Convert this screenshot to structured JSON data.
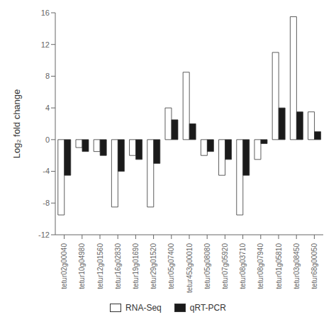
{
  "chart_data": {
    "type": "bar",
    "categories": [
      "tetur02g00040",
      "tetur10g04980",
      "tetur12g01560",
      "tetur16g02830",
      "tetur19g01690",
      "tetur29g01520",
      "tetur05g07400",
      "tetur453g00010",
      "tetur05g08080",
      "tetur07g05920",
      "tetur08g03710",
      "tetur08g07940",
      "tetur01g05810",
      "tetur03g08450",
      "tetur68g00050"
    ],
    "series": [
      {
        "name": "RNA-Seq",
        "color": "#ffffff",
        "values": [
          -9.5,
          -1.0,
          -1.5,
          -8.5,
          -2.0,
          -8.5,
          4.0,
          8.5,
          -2.0,
          -4.5,
          -9.5,
          -2.5,
          11.0,
          15.5,
          3.5
        ]
      },
      {
        "name": "qRT-PCR",
        "color": "#1a1a1a",
        "values": [
          -4.5,
          -1.5,
          -2.0,
          -4.0,
          -2.5,
          -3.0,
          2.5,
          2.0,
          -1.5,
          -2.5,
          -4.5,
          -0.5,
          4.0,
          3.5,
          1.0
        ]
      }
    ],
    "ylabel": "Log₂ fold change",
    "ylim": [
      -12,
      16
    ],
    "yticks": [
      -12,
      -8,
      -4,
      0,
      4,
      8,
      12,
      16
    ],
    "grid": false,
    "legend": "bottom"
  }
}
